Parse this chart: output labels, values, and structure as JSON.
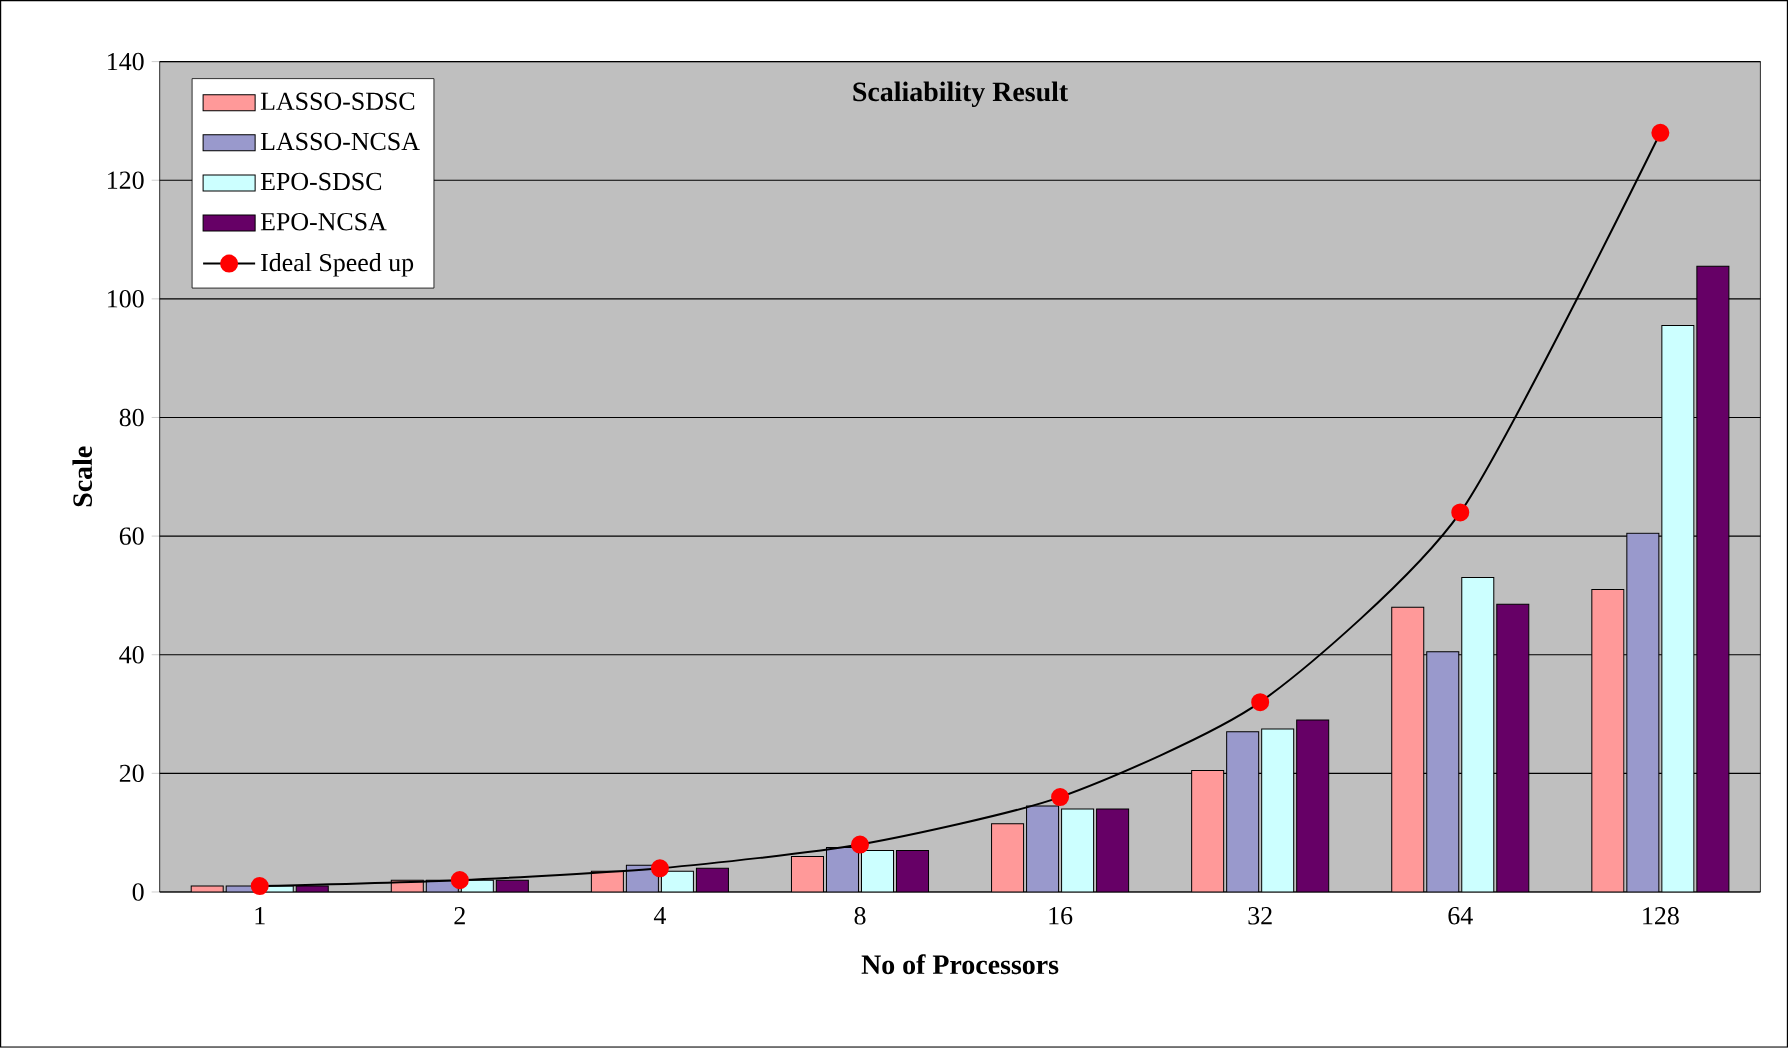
{
  "chart_data": {
    "type": "bar",
    "title": "Scaliability Result",
    "xlabel": "No of Processors",
    "ylabel": "Scale",
    "categories": [
      "1",
      "2",
      "4",
      "8",
      "16",
      "32",
      "64",
      "128"
    ],
    "series": [
      {
        "name": "LASSO-SDSC",
        "color": "#ff9999",
        "values": [
          1,
          2,
          3.5,
          6,
          11.5,
          20.5,
          48,
          51
        ]
      },
      {
        "name": "LASSO-NCSA",
        "color": "#9999cc",
        "values": [
          1,
          2,
          4.5,
          7.5,
          14.5,
          27,
          40.5,
          60.5
        ]
      },
      {
        "name": "EPO-SDSC",
        "color": "#ccffff",
        "values": [
          1,
          2,
          3.5,
          7,
          14,
          27.5,
          53,
          95.5
        ]
      },
      {
        "name": "EPO-NCSA",
        "color": "#660066",
        "values": [
          1,
          2,
          4,
          7,
          14,
          29,
          48.5,
          105.5
        ]
      },
      {
        "name": "Ideal Speed up",
        "type": "line",
        "color": "#ff0000",
        "marker": "circle",
        "values": [
          1,
          2,
          4,
          8,
          16,
          32,
          64,
          128
        ]
      }
    ],
    "ylim": [
      0,
      140
    ],
    "yticks": [
      0,
      20,
      40,
      60,
      80,
      100,
      120,
      140
    ],
    "grid": "y",
    "legend": "top left"
  }
}
